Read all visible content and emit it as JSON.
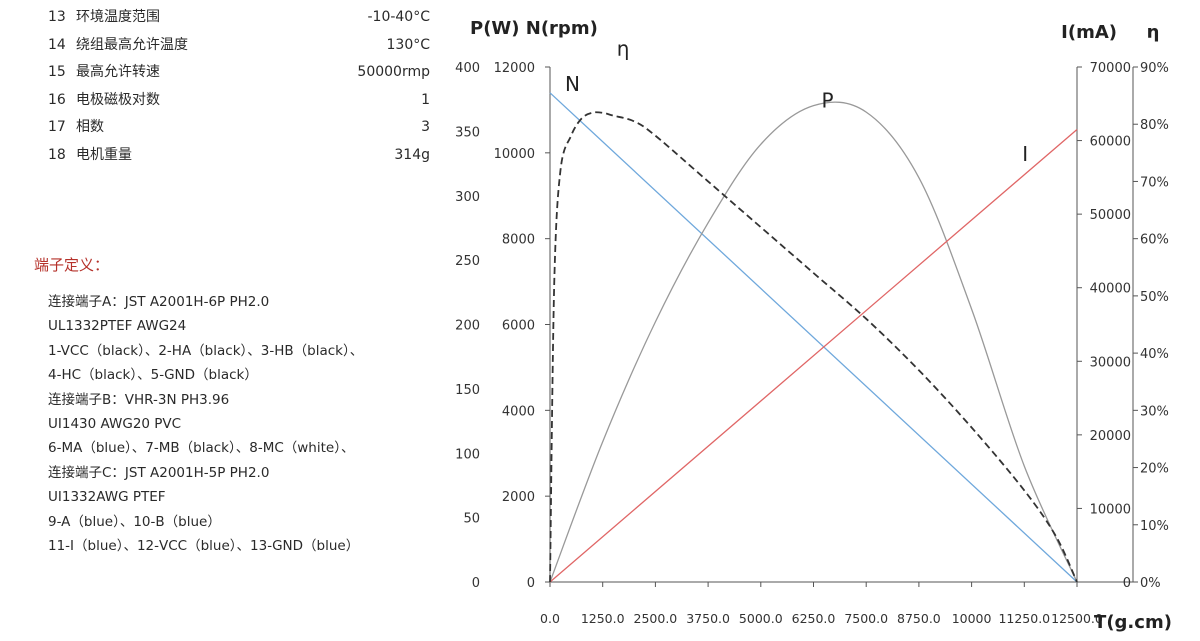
{
  "specs": [
    {
      "no": "13",
      "name": "环境温度范围",
      "value": "-10-40°C"
    },
    {
      "no": "14",
      "name": "绕组最高允许温度",
      "value": "130°C"
    },
    {
      "no": "15",
      "name": "最高允许转速",
      "value": "50000rmp"
    },
    {
      "no": "16",
      "name": "电极磁极对数",
      "value": "1"
    },
    {
      "no": "17",
      "name": "相数",
      "value": "3"
    },
    {
      "no": "18",
      "name": "电机重量",
      "value": "314g"
    }
  ],
  "terminal": {
    "title": "端子定义：",
    "lines": [
      "连接端子A：JST  A2001H-6P  PH2.0",
      "UL1332PTEF  AWG24",
      "1-VCC（black）、2-HA（black）、3-HB（black）、",
      "4-HC（black）、5-GND（black）",
      "连接端子B：VHR-3N  PH3.96",
      "UI1430  AWG20 PVC",
      "6-MA（blue）、7-MB（black）、8-MC（white）、",
      "连接端子C：JST  A2001H-5P  PH2.0",
      "UI1332AWG  PTEF",
      "9-A（blue）、10-B（blue）",
      "11-I（blue）、12-VCC（blue）、13-GND（blue）"
    ]
  },
  "chart_data": {
    "type": "line",
    "left_axis_title": "P(W) N(rpm)",
    "right_axis_title_i": "I(mA)",
    "right_axis_title_eta": "η",
    "xlabel": "T(g.cm)",
    "x_range": [
      0,
      12500
    ],
    "x_ticks": [
      "0.0",
      "1250.0",
      "2500.0",
      "3750.0",
      "5000.0",
      "6250.0",
      "7500.0",
      "8750.0",
      "10000",
      "11250.0",
      "12500.0"
    ],
    "axes": {
      "P": {
        "range": [
          0,
          400
        ],
        "ticks": [
          "0",
          "50",
          "100",
          "150",
          "200",
          "250",
          "300",
          "350",
          "400"
        ]
      },
      "N": {
        "range": [
          0,
          12000
        ],
        "ticks": [
          "0",
          "2000",
          "4000",
          "6000",
          "8000",
          "10000",
          "12000"
        ]
      },
      "I": {
        "range": [
          0,
          70000
        ],
        "ticks": [
          "0",
          "10000",
          "20000",
          "30000",
          "40000",
          "50000",
          "60000",
          "70000"
        ]
      },
      "eta": {
        "range": [
          0,
          90
        ],
        "ticks": [
          "0%",
          "10%",
          "20%",
          "30%",
          "40%",
          "50%",
          "60%",
          "70%",
          "80%",
          "90%"
        ]
      }
    },
    "series": [
      {
        "name": "N",
        "axis": "N",
        "color": "#6fa8dc",
        "dash": false,
        "x": [
          0,
          12500
        ],
        "y": [
          11400,
          0
        ]
      },
      {
        "name": "P",
        "axis": "P",
        "color": "#999999",
        "dash": false,
        "x": [
          0,
          1250,
          2500,
          3750,
          5000,
          6250,
          7500,
          8750,
          10000,
          11250,
          12500
        ],
        "y": [
          0,
          109,
          202,
          279,
          340,
          370,
          365,
          314,
          212,
          90,
          0
        ]
      },
      {
        "name": "I",
        "axis": "I",
        "color": "#e06666",
        "dash": false,
        "x": [
          0,
          12500
        ],
        "y": [
          0,
          61500
        ]
      },
      {
        "name": "η",
        "axis": "eta",
        "color": "#333333",
        "dash": true,
        "x": [
          0,
          100,
          250,
          500,
          750,
          1000,
          1250,
          1500,
          2000,
          2500,
          3750,
          5000,
          6250,
          7500,
          8750,
          10000,
          11250,
          12000,
          12500
        ],
        "y": [
          0,
          52,
          72,
          78,
          81,
          82,
          82,
          81.5,
          80.5,
          78,
          70,
          62,
          54,
          46,
          37,
          27,
          16,
          8,
          0
        ]
      }
    ]
  }
}
